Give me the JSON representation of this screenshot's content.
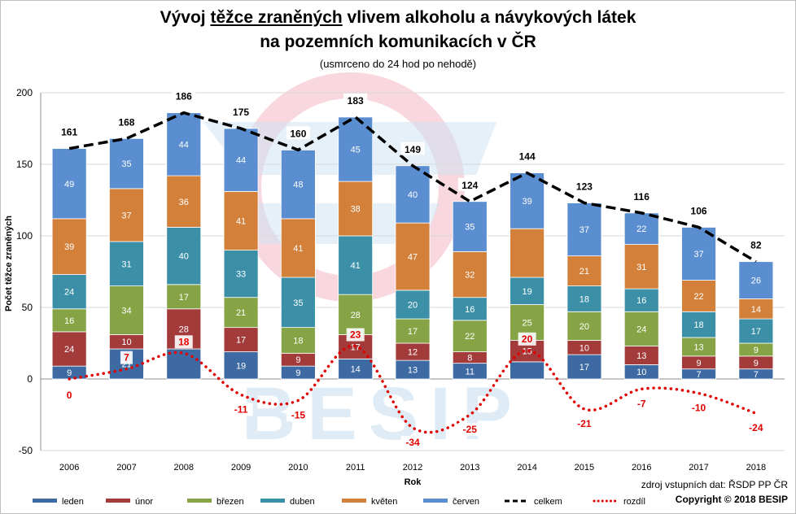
{
  "title": {
    "line1_part1": "Vývoj ",
    "line1_underlined": "těžce zraněných",
    "line1_part2": " vlivem alkoholu a návykových látek",
    "line2": "na pozemních komunikacích v ČR",
    "subtitle": "(usmrceno do 24 hod po nehodě)"
  },
  "watermark": "BESIP",
  "source_text": "zdroj vstupních dat: ŘSDP PP ČR",
  "copyright_text": "Copyright © 2018  BESIP",
  "colors": {
    "leden": "#3d6aa3",
    "unor": "#a33b3b",
    "brezen": "#86a445",
    "duben": "#3b90a8",
    "kveten": "#d2803a",
    "cerven": "#5a8ed0",
    "celkem": "#000000",
    "rozdil": "#e00000",
    "grid": "#d9d9d9",
    "watermark_red": "#f4b6c2",
    "watermark_blue": "#cfe3f2"
  },
  "chart_data": {
    "type": "bar",
    "stacked": true,
    "categories": [
      "2006",
      "2007",
      "2008",
      "2009",
      "2010",
      "2011",
      "2012",
      "2013",
      "2014",
      "2015",
      "2016",
      "2017",
      "2018"
    ],
    "xlabel": "Rok",
    "ylabel": "Počet těžce zraněných",
    "ylim": [
      -50,
      200
    ],
    "yticks": [
      -50,
      0,
      50,
      100,
      150,
      200
    ],
    "grid": true,
    "legend_position": "bottom",
    "series": [
      {
        "name": "leden",
        "type": "bar",
        "values": [
          9,
          21,
          21,
          19,
          9,
          14,
          13,
          11,
          12,
          17,
          10,
          7,
          7
        ],
        "labels": [
          "9",
          "21",
          "",
          "19",
          "9",
          "14",
          "13",
          "11",
          "",
          "17",
          "10",
          "7",
          "7"
        ]
      },
      {
        "name": "únor",
        "type": "bar",
        "values": [
          24,
          10,
          28,
          17,
          9,
          17,
          12,
          8,
          15,
          10,
          13,
          9,
          9
        ],
        "labels": [
          "24",
          "10",
          "28",
          "17",
          "9",
          "17",
          "12",
          "8",
          "15",
          "10",
          "13",
          "9",
          "9"
        ]
      },
      {
        "name": "březen",
        "type": "bar",
        "values": [
          16,
          34,
          17,
          21,
          18,
          28,
          17,
          22,
          25,
          20,
          24,
          13,
          9
        ],
        "labels": [
          "16",
          "34",
          "17",
          "21",
          "18",
          "28",
          "17",
          "22",
          "25",
          "20",
          "24",
          "13",
          "9"
        ]
      },
      {
        "name": "duben",
        "type": "bar",
        "values": [
          24,
          31,
          40,
          33,
          35,
          41,
          20,
          16,
          19,
          18,
          16,
          18,
          17
        ],
        "labels": [
          "24",
          "31",
          "40",
          "33",
          "35",
          "41",
          "20",
          "16",
          "19",
          "18",
          "16",
          "18",
          "17"
        ]
      },
      {
        "name": "květen",
        "type": "bar",
        "values": [
          39,
          37,
          36,
          41,
          41,
          38,
          47,
          32,
          34,
          21,
          31,
          22,
          14
        ],
        "labels": [
          "39",
          "37",
          "36",
          "41",
          "41",
          "38",
          "47",
          "32",
          "",
          "21",
          "31",
          "22",
          "14"
        ]
      },
      {
        "name": "červen",
        "type": "bar",
        "values": [
          49,
          35,
          44,
          44,
          48,
          45,
          40,
          35,
          39,
          37,
          22,
          37,
          26
        ],
        "labels": [
          "49",
          "35",
          "44",
          "44",
          "48",
          "45",
          "40",
          "35",
          "39",
          "37",
          "22",
          "37",
          "26"
        ]
      },
      {
        "name": "celkem",
        "type": "line",
        "style": "dashed",
        "values": [
          161,
          168,
          186,
          175,
          160,
          183,
          149,
          124,
          144,
          123,
          116,
          106,
          82
        ],
        "labels": [
          "161",
          "168",
          "186",
          "175",
          "160",
          "183",
          "149",
          "124",
          "144",
          "123",
          "116",
          "106",
          "82"
        ]
      },
      {
        "name": "rozdíl",
        "type": "line",
        "style": "dotted",
        "values": [
          0,
          7,
          18,
          -11,
          -15,
          23,
          -34,
          -25,
          20,
          -21,
          -7,
          -10,
          -24
        ],
        "labels": [
          "0",
          "7",
          "18",
          "-11",
          "-15",
          "23",
          "-34",
          "-25",
          "20",
          "-21",
          "-7",
          "-10",
          "-24"
        ]
      }
    ]
  }
}
